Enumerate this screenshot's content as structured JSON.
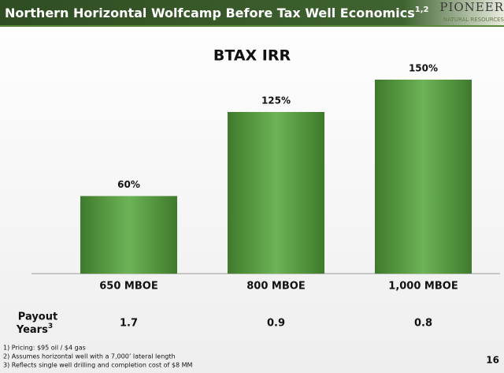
{
  "header": {
    "title": "Northern Horizontal Wolfcamp Before Tax Well Economics",
    "title_sup": "1,2"
  },
  "logo": {
    "name": "PIONEER",
    "subtitle": "NATURAL RESOURCES"
  },
  "chart_data": {
    "type": "bar",
    "title": "BTAX IRR",
    "categories": [
      "650 MBOE",
      "800 MBOE",
      "1,000 MBOE"
    ],
    "values": [
      60,
      125,
      150
    ],
    "value_labels": [
      "60%",
      "125%",
      "150%"
    ],
    "color": "#6cb356"
  },
  "payout": {
    "label_lines": [
      "Payout",
      "Years"
    ],
    "label_sup": "3",
    "values": [
      1.7,
      0.9,
      0.8
    ]
  },
  "footnotes": [
    "1)  Pricing: $95 oil / $4 gas",
    "2)  Assumes horizontal well with a 7,000’ lateral length",
    "3)  Reflects single well drilling and completion cost of $8 MM"
  ],
  "page_number": 16
}
